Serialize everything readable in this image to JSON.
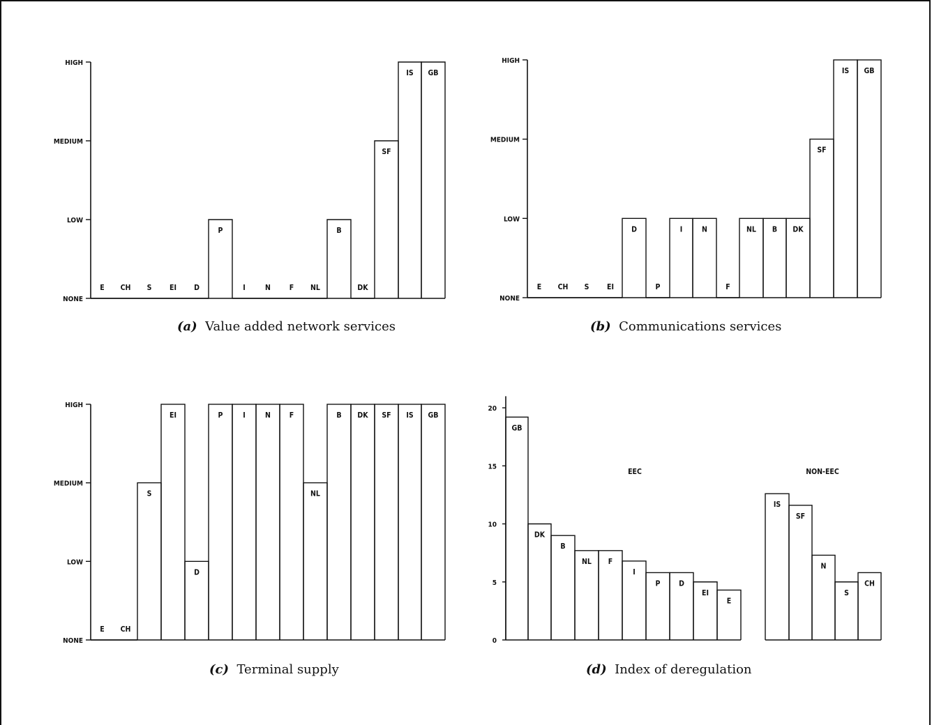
{
  "chart_data": [
    {
      "type": "bar",
      "panel": "a",
      "caption_letter": "(a)",
      "caption_text": "Value added network services",
      "yticks": [
        "NONE",
        "LOW",
        "MEDIUM",
        "HIGH"
      ],
      "ylim": [
        0,
        3
      ],
      "categories": [
        "E",
        "CH",
        "S",
        "EI",
        "D",
        "P",
        "I",
        "N",
        "F",
        "NL",
        "B",
        "DK",
        "SF",
        "IS",
        "GB"
      ],
      "values": [
        0,
        0,
        0,
        0,
        0,
        1,
        0,
        0,
        0,
        0,
        1,
        0,
        2,
        3,
        3
      ]
    },
    {
      "type": "bar",
      "panel": "b",
      "caption_letter": "(b)",
      "caption_text": "Communications services",
      "yticks": [
        "NONE",
        "LOW",
        "MEDIUM",
        "HIGH"
      ],
      "ylim": [
        0,
        3
      ],
      "categories": [
        "E",
        "CH",
        "S",
        "EI",
        "D",
        "P",
        "I",
        "N",
        "F",
        "NL",
        "B",
        "DK",
        "SF",
        "IS",
        "GB"
      ],
      "values": [
        0,
        0,
        0,
        0,
        1,
        0,
        1,
        1,
        0,
        1,
        1,
        1,
        2,
        3,
        3
      ]
    },
    {
      "type": "bar",
      "panel": "c",
      "caption_letter": "(c)",
      "caption_text": "Terminal supply",
      "yticks": [
        "NONE",
        "LOW",
        "MEDIUM",
        "HIGH"
      ],
      "ylim": [
        0,
        3
      ],
      "categories": [
        "E",
        "CH",
        "S",
        "EI",
        "D",
        "P",
        "I",
        "N",
        "F",
        "NL",
        "B",
        "DK",
        "SF",
        "IS",
        "GB"
      ],
      "values": [
        0,
        0,
        2,
        3,
        1,
        3,
        3,
        3,
        3,
        2,
        3,
        3,
        3,
        3,
        3
      ]
    },
    {
      "type": "bar",
      "panel": "d",
      "caption_letter": "(d)",
      "caption_text": "Index of deregulation",
      "yticks": [
        "0",
        "5",
        "10",
        "15",
        "20"
      ],
      "ylim": [
        0,
        21
      ],
      "groups": [
        {
          "label": "EEC",
          "categories": [
            "GB",
            "DK",
            "B",
            "NL",
            "F",
            "I",
            "P",
            "D",
            "EI",
            "E"
          ],
          "values": [
            19.2,
            10,
            9,
            7.7,
            7.7,
            6.8,
            5.8,
            5.8,
            5,
            4.3
          ]
        },
        {
          "label": "NON-EEC",
          "categories": [
            "IS",
            "SF",
            "N",
            "S",
            "CH"
          ],
          "values": [
            12.6,
            11.6,
            7.3,
            5,
            5.8
          ]
        }
      ]
    }
  ]
}
